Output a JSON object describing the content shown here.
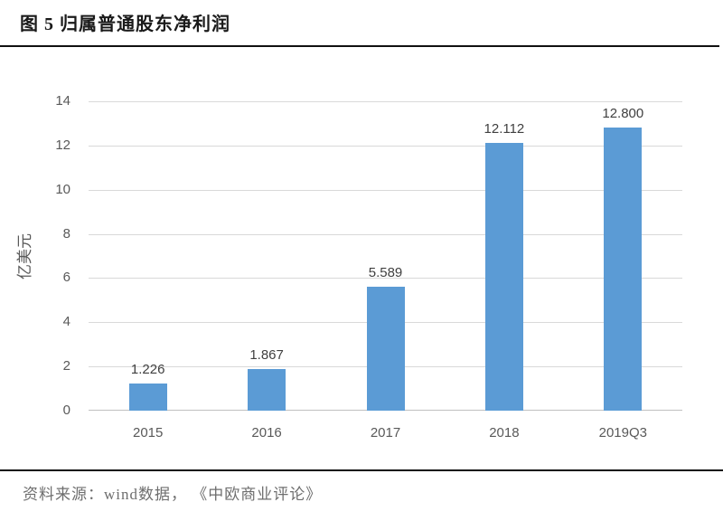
{
  "page": {
    "title": "图 5 归属普通股东净利润",
    "source_note": "资料来源：wind数据， 《中欧商业评论》"
  },
  "chart_data": {
    "type": "bar",
    "title": "图 5 归属普通股东净利润",
    "categories": [
      "2015",
      "2016",
      "2017",
      "2018",
      "2019Q3"
    ],
    "values": [
      1.226,
      1.867,
      5.589,
      12.112,
      12.8
    ],
    "value_labels": [
      "1.226",
      "1.867",
      "5.589",
      "12.112",
      "12.800"
    ],
    "xlabel": "",
    "ylabel": "亿美元",
    "ylim": [
      0,
      14
    ],
    "yticks": [
      0,
      2,
      4,
      6,
      8,
      10,
      12,
      14
    ],
    "grid": true,
    "legend": "none",
    "colors": {
      "bar": "#5B9BD5",
      "gridline": "#D9D9D9",
      "axis_line": "#C0C0C0",
      "tick_label": "#595959",
      "value_label": "#404040"
    }
  }
}
